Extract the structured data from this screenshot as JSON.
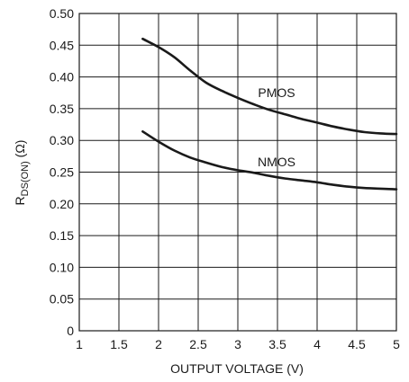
{
  "chart_data": {
    "type": "line",
    "xlabel": "OUTPUT VOLTAGE (V)",
    "ylabel": "RDS(ON) (Ω)",
    "ylabel_main": "R",
    "ylabel_sub": "DS(ON)",
    "ylabel_unit": " (Ω)",
    "xlim": [
      1,
      5
    ],
    "ylim": [
      0,
      0.5
    ],
    "x_ticks": [
      "1",
      "1.5",
      "2",
      "2.5",
      "3",
      "3.5",
      "4",
      "4.5",
      "5"
    ],
    "y_ticks": [
      "0",
      "0.05",
      "0.10",
      "0.15",
      "0.20",
      "0.25",
      "0.30",
      "0.35",
      "0.40",
      "0.45",
      "0.50"
    ],
    "grid": true,
    "series": [
      {
        "name": "PMOS",
        "x": [
          1.8,
          2.0,
          2.2,
          2.4,
          2.6,
          2.8,
          3.0,
          3.2,
          3.4,
          3.6,
          3.8,
          4.0,
          4.2,
          4.4,
          4.6,
          4.8,
          5.0
        ],
        "values": [
          0.46,
          0.447,
          0.431,
          0.41,
          0.391,
          0.378,
          0.367,
          0.357,
          0.348,
          0.341,
          0.334,
          0.328,
          0.322,
          0.317,
          0.313,
          0.311,
          0.31
        ]
      },
      {
        "name": "NMOS",
        "x": [
          1.8,
          2.0,
          2.2,
          2.4,
          2.6,
          2.8,
          3.0,
          3.2,
          3.4,
          3.6,
          3.8,
          4.0,
          4.2,
          4.4,
          4.6,
          4.8,
          5.0
        ],
        "values": [
          0.314,
          0.298,
          0.284,
          0.273,
          0.265,
          0.258,
          0.253,
          0.249,
          0.244,
          0.24,
          0.237,
          0.234,
          0.23,
          0.227,
          0.225,
          0.224,
          0.223
        ]
      }
    ],
    "colors": {
      "line": "#1a1a1a",
      "grid": "#1a1a1a",
      "background": "#ffffff"
    }
  }
}
